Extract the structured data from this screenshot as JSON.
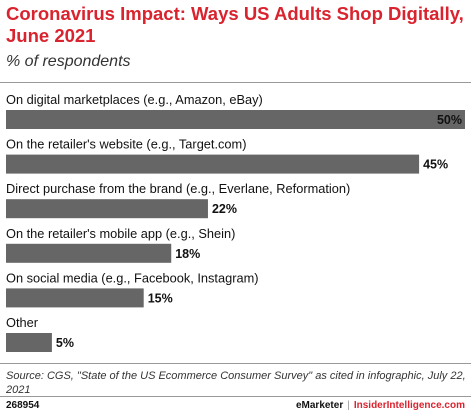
{
  "header": {
    "title": "Coronavirus Impact: Ways US Adults Shop Digitally, June 2021",
    "subtitle": "% of respondents"
  },
  "chart_data": {
    "type": "bar",
    "orientation": "horizontal",
    "categories": [
      "On digital marketplaces (e.g., Amazon, eBay)",
      "On the retailer's website (e.g., Target.com)",
      "Direct purchase from the brand (e.g., Everlane, Reformation)",
      "On the retailer's mobile app (e.g., Shein)",
      "On social media (e.g., Facebook, Instagram)",
      "Other"
    ],
    "values": [
      50,
      45,
      22,
      18,
      15,
      5
    ],
    "value_labels": [
      "50%",
      "45%",
      "22%",
      "18%",
      "15%",
      "5%"
    ],
    "title": "Coronavirus Impact: Ways US Adults Shop Digitally, June 2021",
    "subtitle": "% of respondents",
    "xlim": [
      0,
      50
    ],
    "grid": false,
    "bar_color": "#666666"
  },
  "footer": {
    "source": "Source: CGS, \"State of the US Ecommerce Consumer Survey\" as cited in infographic, July 22, 2021",
    "chart_id": "268954",
    "brand_primary": "eMarketer",
    "brand_separator": "|",
    "brand_secondary": "InsiderIntelligence.com"
  }
}
